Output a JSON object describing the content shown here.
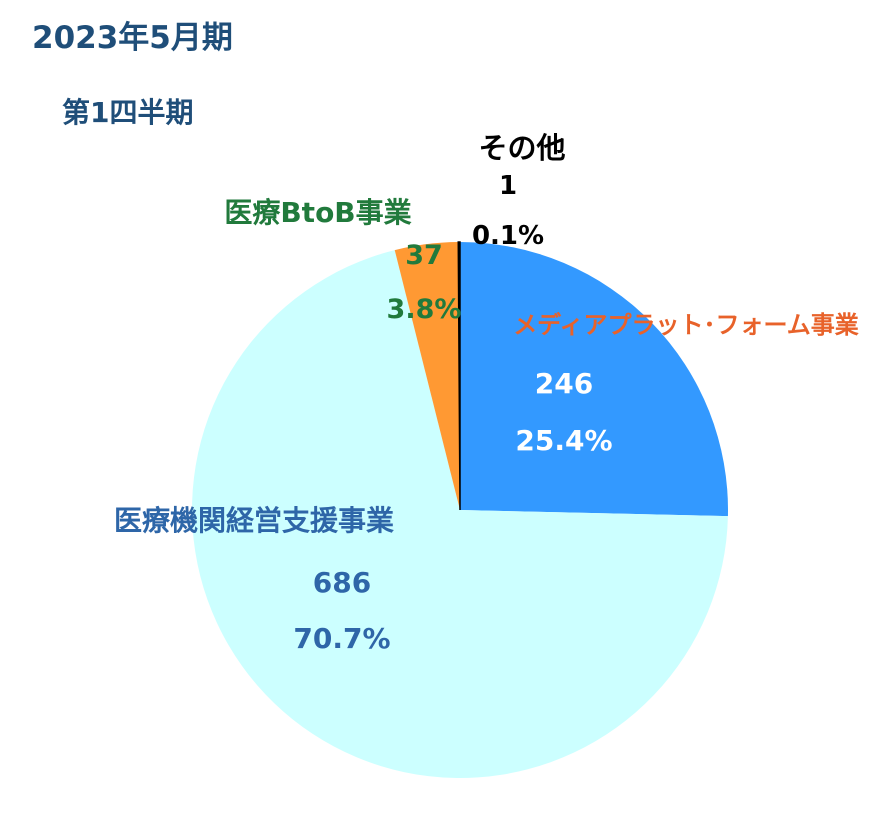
{
  "page": {
    "title": "2023年5月期",
    "subtitle": "第1四半期"
  },
  "chart_data": {
    "type": "pie",
    "start": "12 o'clock, clockwise",
    "slices": [
      {
        "name": "メディアプラット･フォーム事業",
        "value": 246,
        "percent": "25.4%",
        "color": "#3399ff",
        "name_color": "#e8622a",
        "value_color": "#ffffff"
      },
      {
        "name": "医療機関経営支援事業",
        "value": 686,
        "percent": "70.7%",
        "color": "#ccffff",
        "name_color": "#2e66a8",
        "value_color": "#2e66a8"
      },
      {
        "name": "医療BtoB事業",
        "value": 37,
        "percent": "3.8%",
        "color": "#ff9933",
        "name_color": "#217a3c",
        "value_color": "#217a3c"
      },
      {
        "name": "その他",
        "value": 1,
        "percent": "0.1%",
        "color": "#000000",
        "name_color": "#000000",
        "value_color": "#000000"
      }
    ]
  }
}
